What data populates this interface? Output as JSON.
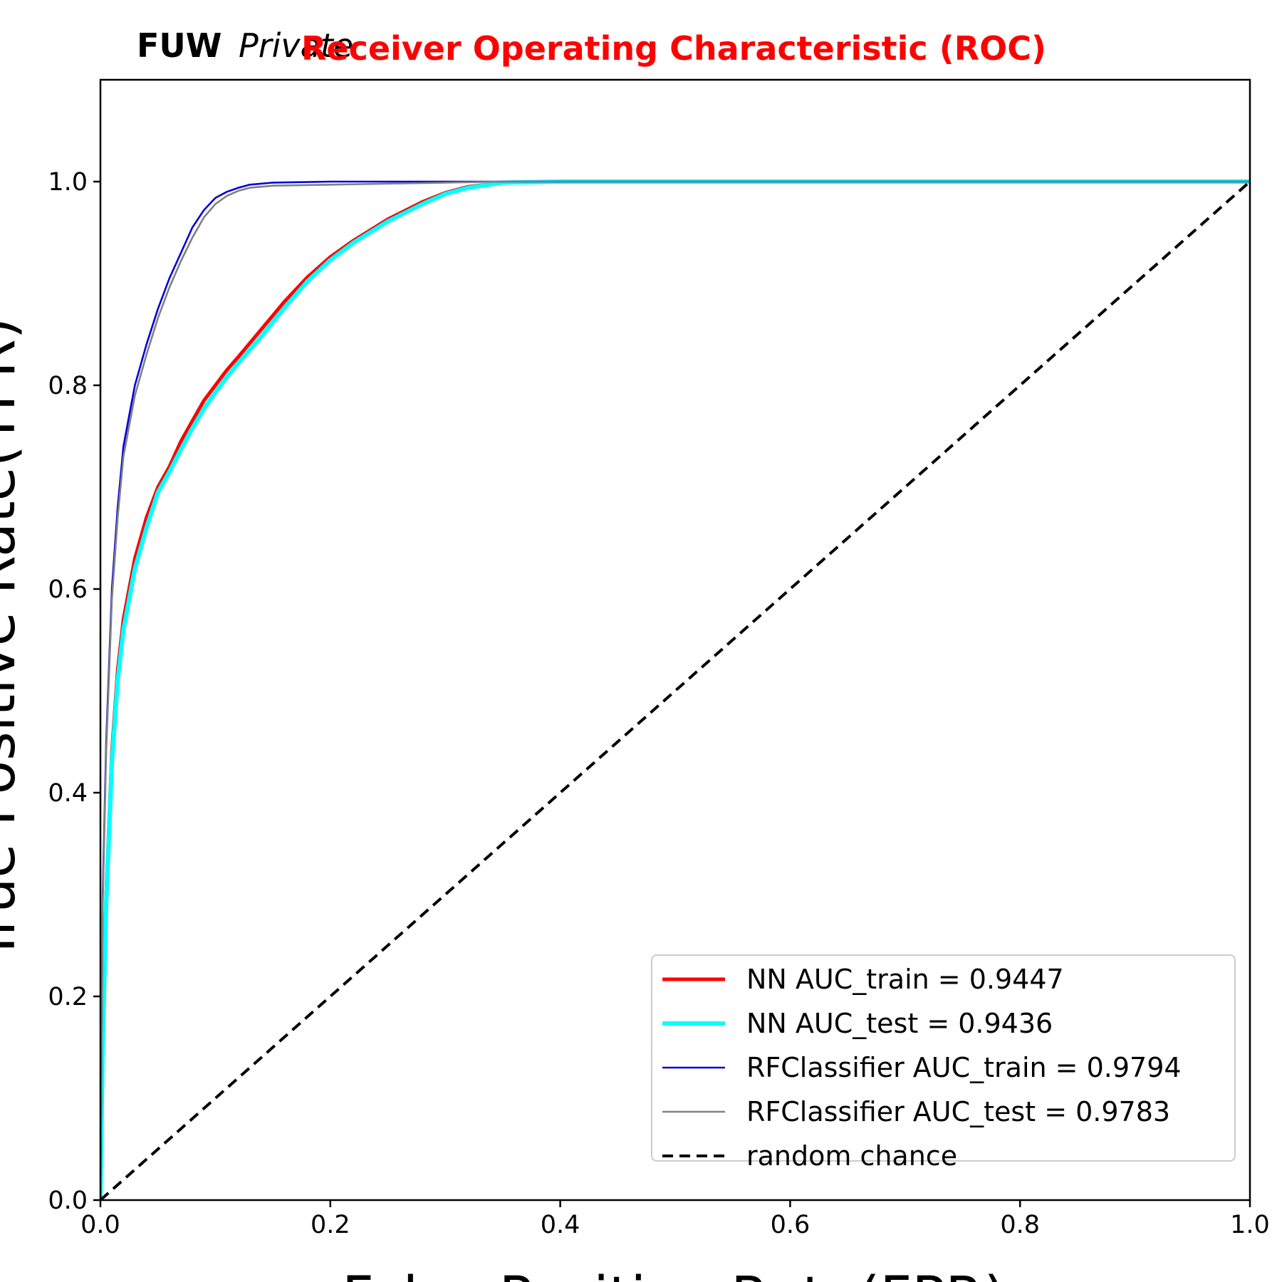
{
  "chart_data": {
    "type": "line",
    "title": "Receiver Operating Characteristic (ROC)",
    "title_color": "#ff0000",
    "brand": {
      "bold": "FUW",
      "italic": "Private"
    },
    "xlabel": "False Positive Rate(FPR)",
    "ylabel": "True Positive Rate(TPR)",
    "xlim": [
      0.0,
      1.0
    ],
    "ylim": [
      0.0,
      1.1
    ],
    "xticks": [
      "0.0",
      "0.2",
      "0.4",
      "0.6",
      "0.8",
      "1.0"
    ],
    "yticks": [
      "0.0",
      "0.2",
      "0.4",
      "0.6",
      "0.8",
      "1.0"
    ],
    "grid": false,
    "legend_position": "lower-right",
    "series": [
      {
        "name": "NN AUC_train = 0.9447",
        "color": "#ff0000",
        "style": "solid",
        "x": [
          0.0,
          0.002,
          0.005,
          0.01,
          0.015,
          0.02,
          0.025,
          0.03,
          0.04,
          0.05,
          0.06,
          0.07,
          0.08,
          0.09,
          0.1,
          0.11,
          0.12,
          0.14,
          0.16,
          0.18,
          0.2,
          0.22,
          0.25,
          0.28,
          0.3,
          0.32,
          0.35,
          0.4,
          0.5,
          0.6,
          0.8,
          1.0
        ],
        "y": [
          0.0,
          0.16,
          0.3,
          0.44,
          0.52,
          0.57,
          0.6,
          0.63,
          0.67,
          0.7,
          0.72,
          0.745,
          0.765,
          0.785,
          0.8,
          0.815,
          0.828,
          0.855,
          0.882,
          0.906,
          0.926,
          0.942,
          0.963,
          0.98,
          0.989,
          0.995,
          0.999,
          1.0,
          1.0,
          1.0,
          1.0,
          1.0
        ]
      },
      {
        "name": "NN AUC_test = 0.9436",
        "color": "#00ffff",
        "style": "solid",
        "x": [
          0.0,
          0.002,
          0.005,
          0.01,
          0.015,
          0.02,
          0.025,
          0.03,
          0.04,
          0.05,
          0.06,
          0.07,
          0.08,
          0.09,
          0.1,
          0.11,
          0.12,
          0.14,
          0.16,
          0.18,
          0.2,
          0.22,
          0.25,
          0.28,
          0.3,
          0.32,
          0.35,
          0.4,
          0.5,
          0.6,
          0.8,
          1.0
        ],
        "y": [
          0.0,
          0.15,
          0.29,
          0.43,
          0.51,
          0.56,
          0.59,
          0.62,
          0.66,
          0.695,
          0.715,
          0.737,
          0.758,
          0.777,
          0.793,
          0.808,
          0.822,
          0.848,
          0.876,
          0.902,
          0.923,
          0.94,
          0.961,
          0.978,
          0.988,
          0.994,
          0.999,
          1.0,
          1.0,
          1.0,
          1.0,
          1.0
        ]
      },
      {
        "name": "RFClassifier AUC_train = 0.9794",
        "color": "#0000dd",
        "style": "solid",
        "x": [
          0.0,
          0.002,
          0.005,
          0.01,
          0.015,
          0.02,
          0.025,
          0.03,
          0.04,
          0.05,
          0.06,
          0.07,
          0.08,
          0.09,
          0.1,
          0.11,
          0.12,
          0.13,
          0.15,
          0.2,
          0.3,
          0.5,
          1.0
        ],
        "y": [
          0.0,
          0.3,
          0.45,
          0.6,
          0.68,
          0.74,
          0.77,
          0.8,
          0.84,
          0.875,
          0.905,
          0.93,
          0.955,
          0.972,
          0.984,
          0.99,
          0.994,
          0.997,
          0.999,
          1.0,
          1.0,
          1.0,
          1.0
        ]
      },
      {
        "name": "RFClassifier AUC_test = 0.9783",
        "color": "#808080",
        "style": "solid",
        "x": [
          0.0,
          0.002,
          0.005,
          0.01,
          0.015,
          0.02,
          0.025,
          0.03,
          0.04,
          0.05,
          0.06,
          0.07,
          0.08,
          0.09,
          0.1,
          0.11,
          0.12,
          0.13,
          0.15,
          0.2,
          0.3,
          0.35,
          0.5,
          1.0
        ],
        "y": [
          0.0,
          0.29,
          0.44,
          0.59,
          0.67,
          0.73,
          0.76,
          0.79,
          0.83,
          0.866,
          0.896,
          0.922,
          0.945,
          0.965,
          0.978,
          0.986,
          0.991,
          0.994,
          0.996,
          0.997,
          0.999,
          1.0,
          1.0,
          1.0
        ]
      },
      {
        "name": "random chance",
        "color": "#000000",
        "style": "dashed",
        "x": [
          0.0,
          1.0
        ],
        "y": [
          0.0,
          1.0
        ]
      }
    ]
  }
}
